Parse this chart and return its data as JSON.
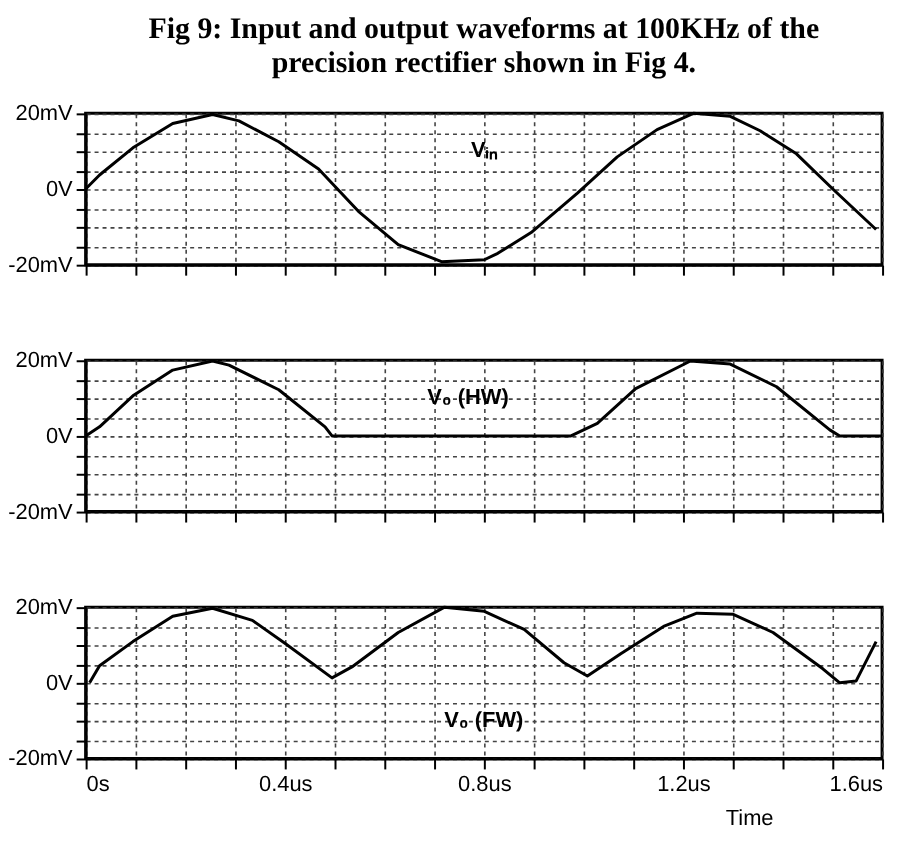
{
  "chart_data": [
    {
      "type": "line",
      "title": [
        "Fig 9: Input and output waveforms at 100KHz of the",
        "precision rectifier shown in Fig 4."
      ],
      "annotations": [
        "Vᵢₙ"
      ],
      "x": [
        0,
        0.028,
        0.095,
        0.175,
        0.255,
        0.308,
        0.388,
        0.468,
        0.548,
        0.628,
        0.715,
        0.801,
        0.828,
        0.895,
        0.988,
        1.068,
        1.148,
        1.221,
        1.295,
        1.355,
        1.428,
        1.501,
        1.588
      ],
      "series": [
        {
          "color": "#000000",
          "values": [
            0,
            3.7,
            10.9,
            17.3,
            19.7,
            18,
            12.5,
            5.3,
            -5.9,
            -14.7,
            -19.2,
            -18.7,
            -17,
            -11.5,
            -1.1,
            8.5,
            15.7,
            20,
            19.2,
            15.4,
            9.3,
            0,
            -10.7
          ]
        }
      ],
      "xlim": [
        0,
        1.6
      ],
      "ylim": [
        -20,
        20
      ],
      "tick_labels": "y",
      "grid": true,
      "xticks": [
        0,
        0.1,
        0.2,
        0.3,
        0.4,
        0.5,
        0.6,
        0.7,
        0.8,
        0.9,
        1.0,
        1.1,
        1.2,
        1.3,
        1.4,
        1.5,
        1.6
      ],
      "yticks": [
        {
          "value": -20,
          "label": "-20mV"
        },
        {
          "value": -15,
          "label": null
        },
        {
          "value": -10,
          "label": null
        },
        {
          "value": -5,
          "label": null
        },
        {
          "value": 0,
          "label": "0V"
        },
        {
          "value": 5,
          "label": null
        },
        {
          "value": 10,
          "label": null
        },
        {
          "value": 15,
          "label": null
        },
        {
          "value": 20,
          "label": "20mV"
        }
      ]
    },
    {
      "type": "line",
      "annotations": [
        "V₀ (HW)"
      ],
      "x": [
        0,
        0.028,
        0.095,
        0.175,
        0.255,
        0.288,
        0.388,
        0.481,
        0.495,
        0.975,
        1.028,
        1.105,
        1.215,
        1.295,
        1.388,
        1.495,
        1.515,
        1.6
      ],
      "series": [
        {
          "color": "#000000",
          "values": [
            0,
            2.4,
            10.6,
            17.4,
            19.8,
            18.7,
            12.2,
            2.4,
            0,
            0,
            3.3,
            12.5,
            19.8,
            19,
            13,
            1.6,
            0,
            0
          ]
        }
      ],
      "xlim": [
        0,
        1.6
      ],
      "ylim": [
        -20,
        20
      ],
      "tick_labels": "y",
      "grid": true,
      "xticks": [
        0,
        0.1,
        0.2,
        0.3,
        0.4,
        0.5,
        0.6,
        0.7,
        0.8,
        0.9,
        1.0,
        1.1,
        1.2,
        1.3,
        1.4,
        1.5,
        1.6
      ],
      "yticks": [
        {
          "value": -20,
          "label": "-20mV"
        },
        {
          "value": -15,
          "label": null
        },
        {
          "value": -10,
          "label": null
        },
        {
          "value": -5,
          "label": null
        },
        {
          "value": 0,
          "label": "0V"
        },
        {
          "value": 5,
          "label": null
        },
        {
          "value": 10,
          "label": null
        },
        {
          "value": 15,
          "label": null
        },
        {
          "value": 20,
          "label": "20mV"
        }
      ]
    },
    {
      "type": "line",
      "annotations": [
        "V₀ (FW)"
      ],
      "xlabel": "Time",
      "x": [
        0.008,
        0.028,
        0.095,
        0.175,
        0.255,
        0.335,
        0.401,
        0.495,
        0.535,
        0.628,
        0.721,
        0.801,
        0.881,
        0.961,
        1.008,
        1.075,
        1.161,
        1.228,
        1.301,
        1.381,
        1.481,
        1.515,
        1.548,
        1.588
      ],
      "series": [
        {
          "color": "#000000",
          "values": [
            0,
            4.5,
            10.9,
            17.6,
            19.7,
            16.5,
            10.4,
            1.3,
            4.2,
            13.3,
            20,
            18.9,
            14.1,
            5.3,
            1.8,
            7.7,
            14.9,
            18.4,
            18.1,
            13.3,
            3.7,
            0,
            0.5,
            10.9
          ]
        }
      ],
      "xlim": [
        0,
        1.6
      ],
      "ylim": [
        -20,
        20
      ],
      "grid": true,
      "xticks": [
        {
          "value": 0,
          "label": "0s"
        },
        {
          "value": 0.1,
          "label": null
        },
        {
          "value": 0.2,
          "label": null
        },
        {
          "value": 0.3,
          "label": null
        },
        {
          "value": 0.4,
          "label": "0.4us"
        },
        {
          "value": 0.5,
          "label": null
        },
        {
          "value": 0.6,
          "label": null
        },
        {
          "value": 0.7,
          "label": null
        },
        {
          "value": 0.8,
          "label": "0.8us"
        },
        {
          "value": 0.9,
          "label": null
        },
        {
          "value": 1.0,
          "label": null
        },
        {
          "value": 1.1,
          "label": null
        },
        {
          "value": 1.2,
          "label": "1.2us"
        },
        {
          "value": 1.3,
          "label": null
        },
        {
          "value": 1.4,
          "label": null
        },
        {
          "value": 1.5,
          "label": null
        },
        {
          "value": 1.6,
          "label": "1.6us"
        }
      ],
      "yticks": [
        {
          "value": -20,
          "label": "-20mV"
        },
        {
          "value": -15,
          "label": null
        },
        {
          "value": -10,
          "label": null
        },
        {
          "value": -5,
          "label": null
        },
        {
          "value": 0,
          "label": "0V"
        },
        {
          "value": 5,
          "label": null
        },
        {
          "value": 10,
          "label": null
        },
        {
          "value": 15,
          "label": null
        },
        {
          "value": 20,
          "label": "20mV"
        }
      ]
    }
  ]
}
